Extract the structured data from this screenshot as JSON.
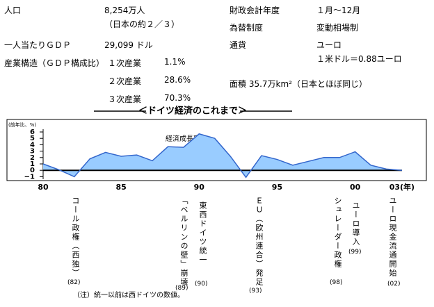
{
  "facts": {
    "population": {
      "label": "人口",
      "value": "8,254万人",
      "note": "（日本の約２／３）"
    },
    "gdp_per_capita": {
      "label": "一人当たりＧＤＰ",
      "value": "29,099 ドル"
    },
    "industry": {
      "label": "産業構造（ＧＤＰ構成比）",
      "rows": [
        [
          "１次産業",
          "1.1%"
        ],
        [
          "２次産業",
          "28.6%"
        ],
        [
          "３次産業",
          "70.3%"
        ]
      ]
    },
    "fiscal_year": {
      "label": "財政会計年度",
      "value": "１月～12月"
    },
    "exchange": {
      "label": "為替制度",
      "value": "変動相場制"
    },
    "currency": {
      "label": "通貨",
      "value": "ユーロ",
      "note": "１米ドル＝0.88ユーロ"
    },
    "area": "面積 35.7万km²（日本とほぼ同じ）"
  },
  "section_title": "＜ドイツ経済のこれまで＞",
  "chart_data": {
    "type": "area",
    "y_label": "(前年比、%)",
    "series": [
      {
        "name": "経済成長率",
        "color": "#3366cc",
        "fill": "#99ccff",
        "values": [
          1.0,
          0.1,
          -1.0,
          1.8,
          2.8,
          2.2,
          2.4,
          1.5,
          3.7,
          3.6,
          5.7,
          5.0,
          2.2,
          -1.1,
          2.3,
          1.7,
          0.8,
          1.4,
          2.0,
          2.0,
          2.9,
          0.8,
          0.2,
          0.0
        ]
      }
    ],
    "x": [
      1980,
      1981,
      1982,
      1983,
      1984,
      1985,
      1986,
      1987,
      1988,
      1989,
      1990,
      1991,
      1992,
      1993,
      1994,
      1995,
      1996,
      1997,
      1998,
      1999,
      2000,
      2001,
      2002,
      2003
    ],
    "xlim": [
      1980,
      2004.6
    ],
    "xticks": [
      {
        "value": 1980,
        "label": "80"
      },
      {
        "value": 1985,
        "label": "85"
      },
      {
        "value": 1990,
        "label": "90"
      },
      {
        "value": 1995,
        "label": "95"
      },
      {
        "value": 2000,
        "label": "00"
      },
      {
        "value": 2003,
        "label": "03(年)"
      }
    ],
    "ylim": [
      -1,
      6
    ],
    "yticks": [
      {
        "value": -1,
        "label": "−1"
      },
      0,
      1,
      2,
      3,
      4,
      5,
      6
    ],
    "annotations": [
      {
        "text": "コール政権（西独）",
        "year": "(82)"
      },
      {
        "text": "「ベルリンの壁」崩壊",
        "year": "(89)"
      },
      {
        "text": "東西ドイツ統一",
        "year": "(90)"
      },
      {
        "text": "ＥＵ（欧州連合）発足",
        "year": "(93)"
      },
      {
        "text": "シュレーダー政権",
        "year": "(98)"
      },
      {
        "text": "ユーロ導入",
        "year": "(99)"
      },
      {
        "text": "ユーロ現金流通開始",
        "year": "(02)"
      }
    ],
    "footnote": "（注）統一以前は西ドイツの数値。"
  }
}
